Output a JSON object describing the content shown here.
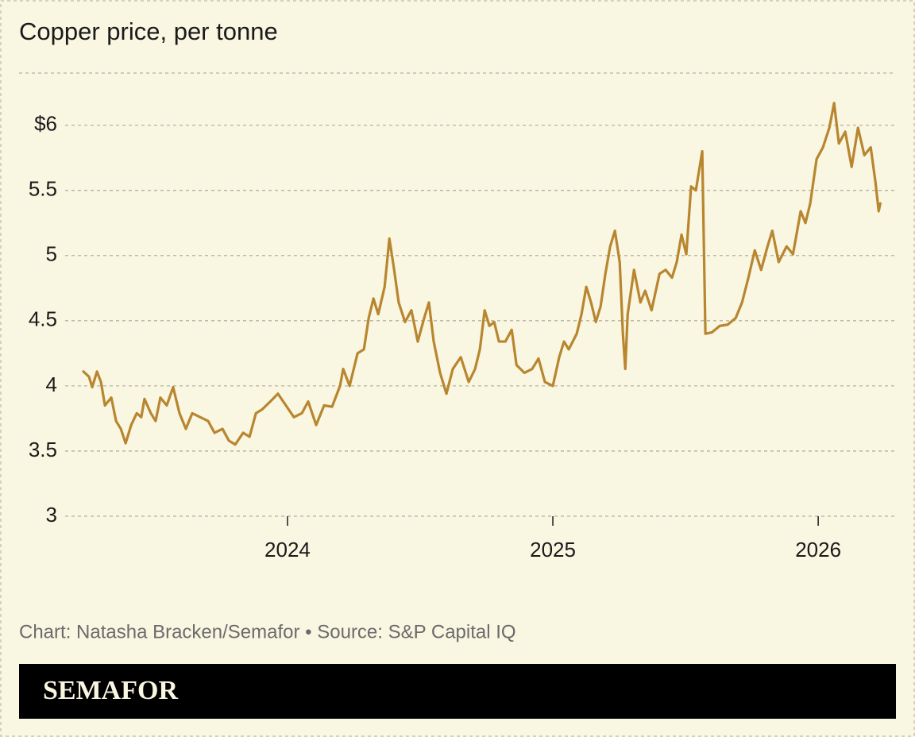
{
  "chart_data": {
    "type": "line",
    "title": "Copper price, per tonne",
    "credit": "Chart: Natasha Bracken/Semafor • Source: S&P Capital IQ",
    "brand": "SEMAFOR",
    "xlim": [
      2023.162,
      2026.293
    ],
    "xticks": [
      2024,
      2025,
      2026
    ],
    "ylim": [
      3,
      6.4
    ],
    "yticks": [
      3,
      3.5,
      4,
      4.5,
      5,
      5.5,
      {
        "value": 6,
        "label": "$6"
      }
    ],
    "grid": true,
    "series": [
      {
        "color": "#b8862f",
        "x": [
          2023.231,
          2023.252,
          2023.264,
          2023.282,
          2023.297,
          2023.312,
          2023.336,
          2023.354,
          2023.372,
          2023.39,
          2023.411,
          2023.432,
          2023.449,
          2023.461,
          2023.485,
          2023.503,
          2023.521,
          2023.545,
          2023.569,
          2023.593,
          2023.617,
          2023.641,
          2023.671,
          2023.701,
          2023.725,
          2023.755,
          2023.779,
          2023.803,
          2023.833,
          2023.857,
          2023.881,
          2023.905,
          2023.935,
          2023.964,
          2023.994,
          2024.024,
          2024.054,
          2024.078,
          2024.108,
          2024.138,
          2024.168,
          2024.198,
          2024.21,
          2024.234,
          2024.264,
          2024.288,
          2024.306,
          2024.324,
          2024.342,
          2024.366,
          2024.384,
          2024.402,
          2024.419,
          2024.443,
          2024.467,
          2024.491,
          2024.515,
          2024.533,
          2024.551,
          2024.575,
          2024.599,
          2024.623,
          2024.653,
          2024.683,
          2024.707,
          2024.725,
          2024.743,
          2024.761,
          2024.779,
          2024.797,
          2024.821,
          2024.845,
          2024.863,
          2024.893,
          2024.922,
          2024.946,
          2024.97,
          2025.0,
          2025.024,
          2025.042,
          2025.06,
          2025.09,
          2025.108,
          2025.126,
          2025.144,
          2025.162,
          2025.18,
          2025.198,
          2025.216,
          2025.234,
          2025.252,
          2025.264,
          2025.273,
          2025.282,
          2025.306,
          2025.33,
          2025.348,
          2025.372,
          2025.402,
          2025.425,
          2025.449,
          2025.467,
          2025.485,
          2025.503,
          2025.521,
          2025.539,
          2025.563,
          2025.575,
          2025.599,
          2025.629,
          2025.659,
          2025.689,
          2025.713,
          2025.737,
          2025.761,
          2025.785,
          2025.809,
          2025.827,
          2025.851,
          2025.881,
          2025.905,
          2025.934,
          2025.952,
          2025.97,
          2025.994,
          2026.018,
          2026.042,
          2026.06,
          2026.078,
          2026.102,
          2026.126,
          2026.15,
          2026.174,
          2026.198,
          2026.216,
          2026.228,
          2026.234
        ],
        "values": [
          4.11,
          4.07,
          3.99,
          4.11,
          4.03,
          3.85,
          3.91,
          3.73,
          3.67,
          3.56,
          3.7,
          3.79,
          3.76,
          3.9,
          3.79,
          3.73,
          3.91,
          3.85,
          3.99,
          3.79,
          3.67,
          3.79,
          3.76,
          3.73,
          3.64,
          3.67,
          3.58,
          3.55,
          3.64,
          3.61,
          3.79,
          3.82,
          3.88,
          3.94,
          3.85,
          3.76,
          3.79,
          3.88,
          3.7,
          3.85,
          3.84,
          4.0,
          4.13,
          4.0,
          4.25,
          4.28,
          4.52,
          4.67,
          4.55,
          4.76,
          5.13,
          4.89,
          4.64,
          4.49,
          4.58,
          4.34,
          4.52,
          4.64,
          4.34,
          4.1,
          3.94,
          4.13,
          4.22,
          4.03,
          4.13,
          4.28,
          4.58,
          4.46,
          4.49,
          4.34,
          4.34,
          4.43,
          4.16,
          4.1,
          4.13,
          4.21,
          4.03,
          4.0,
          4.22,
          4.34,
          4.28,
          4.4,
          4.55,
          4.76,
          4.64,
          4.49,
          4.61,
          4.86,
          5.07,
          5.19,
          4.95,
          4.4,
          4.13,
          4.55,
          4.89,
          4.64,
          4.73,
          4.58,
          4.86,
          4.89,
          4.83,
          4.95,
          5.16,
          5.01,
          5.53,
          5.5,
          5.8,
          4.4,
          4.41,
          4.46,
          4.47,
          4.52,
          4.64,
          4.83,
          5.04,
          4.89,
          5.07,
          5.19,
          4.95,
          5.07,
          5.01,
          5.34,
          5.25,
          5.4,
          5.74,
          5.83,
          5.98,
          6.17,
          5.86,
          5.95,
          5.68,
          5.98,
          5.77,
          5.83,
          5.56,
          5.34,
          5.4
        ]
      }
    ]
  }
}
